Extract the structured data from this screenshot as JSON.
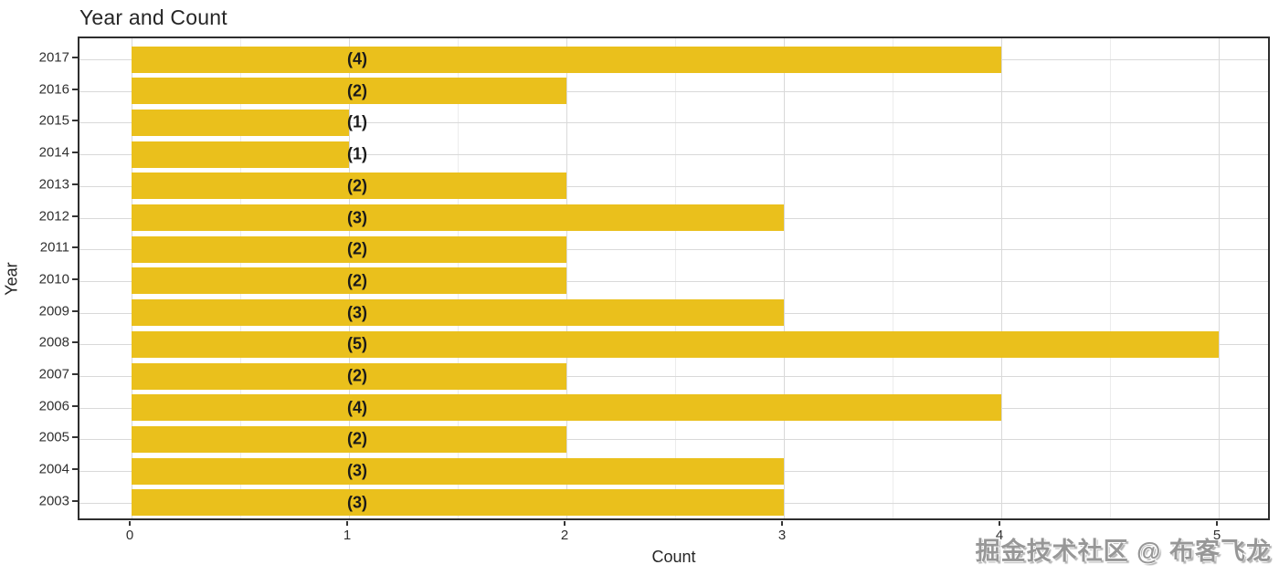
{
  "title": "Year and Count",
  "watermark_text": "掘金技术社区 @ 布客飞龙",
  "colors": {
    "bar": "#EAC01C",
    "grid_major": "#D9D9D9",
    "grid_minor": "#ECECEC",
    "panel_border": "#2E2E2E",
    "axis_text": "#303030",
    "bar_label": "#1A1A1A",
    "watermark": "#979797"
  },
  "chart_data": {
    "type": "bar",
    "orientation": "horizontal",
    "title": "Year and Count",
    "xlabel": "Count",
    "ylabel": "Year",
    "categories": [
      "2017",
      "2016",
      "2015",
      "2014",
      "2013",
      "2012",
      "2011",
      "2010",
      "2009",
      "2008",
      "2007",
      "2006",
      "2005",
      "2004",
      "2003"
    ],
    "values": [
      4,
      2,
      1,
      1,
      2,
      3,
      2,
      2,
      3,
      5,
      2,
      4,
      2,
      3,
      3
    ],
    "bar_labels": [
      "(4)",
      "(2)",
      "(1)",
      "(1)",
      "(2)",
      "(3)",
      "(2)",
      "(2)",
      "(3)",
      "(5)",
      "(2)",
      "(4)",
      "(2)",
      "(3)",
      "(3)"
    ],
    "x_ticks": [
      "0",
      "1",
      "2",
      "3",
      "4",
      "5"
    ],
    "xlim": [
      -0.25,
      5.25
    ],
    "grid": {
      "major_x": true,
      "minor_x": true,
      "major_y": true,
      "minor_y": false
    },
    "legend": "none"
  }
}
